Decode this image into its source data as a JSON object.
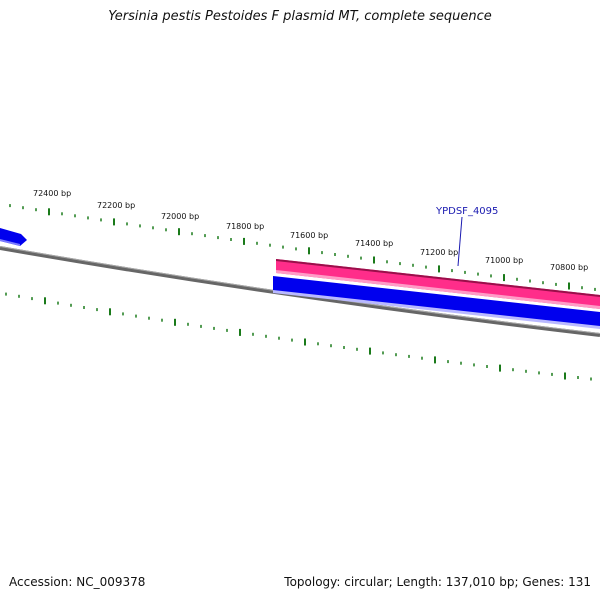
{
  "title": "Yersinia pestis Pestoides F plasmid MT, complete sequence",
  "footer": {
    "accession": "Accession: NC_009378",
    "summary": "Topology: circular; Length: 137,010 bp; Genes: 131"
  },
  "scale_labels": [
    {
      "id": "72400",
      "text": "72400 bp"
    },
    {
      "id": "72200",
      "text": "72200 bp"
    },
    {
      "id": "72000",
      "text": "72000 bp"
    },
    {
      "id": "71800",
      "text": "71800 bp"
    },
    {
      "id": "71600",
      "text": "71600 bp"
    },
    {
      "id": "71400",
      "text": "71400 bp"
    },
    {
      "id": "71200",
      "text": "71200 bp"
    },
    {
      "id": "71000",
      "text": "71000 bp"
    },
    {
      "id": "70800",
      "text": "70800 bp"
    }
  ],
  "gene_labels": [
    {
      "id": "YPDSF_4095",
      "text": "YPDSF_4095"
    }
  ],
  "colors": {
    "tick": "#1a7a1a",
    "backbone": "#777777",
    "forward_feature": "#ff2d8a",
    "reverse_feature": "#0000ee",
    "gene_label": "#1a1ab0"
  }
}
